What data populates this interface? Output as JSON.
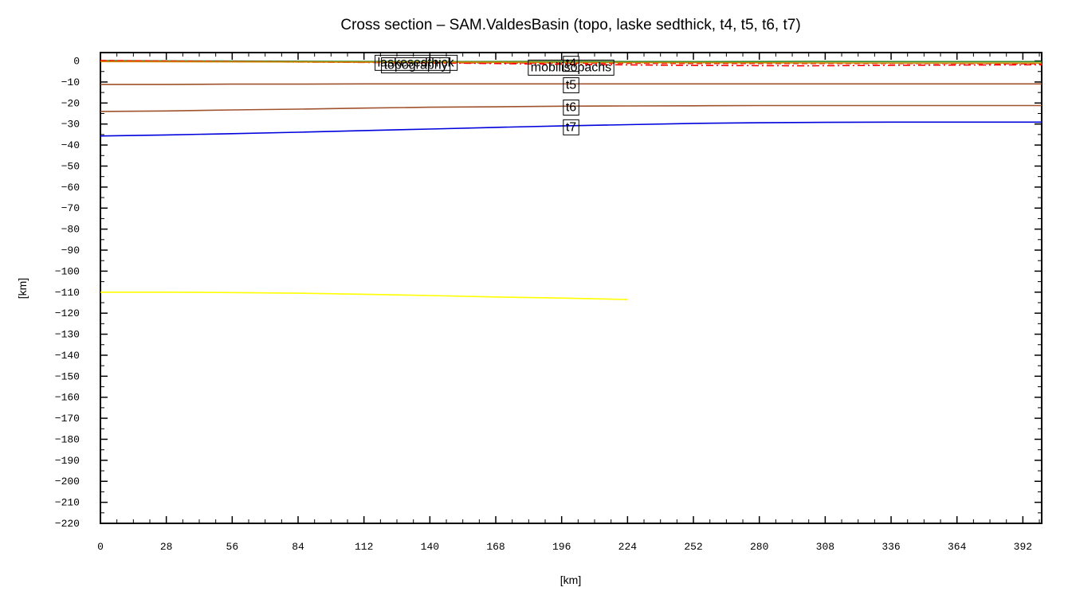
{
  "chart_data": {
    "type": "line",
    "title": "Cross section – SAM.ValdesBasin (topo, laske sedthick, t4, t5, t6, t7)",
    "xlabel": "[km]",
    "ylabel": "[km]",
    "xlim": [
      0,
      400
    ],
    "ylim": [
      -220,
      4
    ],
    "xticks": [
      0,
      28,
      56,
      84,
      112,
      140,
      168,
      196,
      224,
      252,
      280,
      308,
      336,
      364,
      392
    ],
    "yticks": [
      0,
      -10,
      -20,
      -30,
      -40,
      -50,
      -60,
      -70,
      -80,
      -90,
      -100,
      -110,
      -120,
      -130,
      -140,
      -150,
      -160,
      -170,
      -180,
      -190,
      -200,
      -210,
      -220
    ],
    "x_tick_labels": [
      "0",
      "28",
      "56",
      "84",
      "112",
      "140",
      "168",
      "196",
      "224",
      "252",
      "280",
      "308",
      "336",
      "364",
      "392"
    ],
    "y_tick_labels": [
      "0",
      "−10",
      "−20",
      "−30",
      "−40",
      "−50",
      "−60",
      "−70",
      "−80",
      "−90",
      "−100",
      "−110",
      "−120",
      "−130",
      "−140",
      "−150",
      "−160",
      "−170",
      "−180",
      "−190",
      "−200",
      "−210",
      "−220"
    ],
    "grid": false,
    "series": [
      {
        "name": "topography",
        "color": "#2e8b2e",
        "dash": "solid",
        "x": [
          0,
          50,
          100,
          150,
          200,
          250,
          300,
          350,
          400
        ],
        "y": [
          0.2,
          0.0,
          -0.2,
          -0.3,
          -0.2,
          -0.3,
          -0.2,
          -0.3,
          -0.3
        ]
      },
      {
        "name": "laskesedthick",
        "color": "#ff0000",
        "dash": "dashed",
        "x": [
          0,
          50,
          100,
          150,
          200,
          250,
          300,
          350,
          400
        ],
        "y": [
          0.2,
          -0.2,
          -0.5,
          -0.8,
          -1.0,
          -1.2,
          -1.2,
          -1.2,
          -1.3
        ]
      },
      {
        "name": "mobilisopachs",
        "color": "#ff0000",
        "dash": "dashdot",
        "x": [
          0,
          50,
          100,
          150,
          200,
          250,
          300,
          350,
          400
        ],
        "y": [
          0.0,
          -0.3,
          -0.6,
          -1.0,
          -1.6,
          -2.1,
          -2.3,
          -2.0,
          -1.8
        ]
      },
      {
        "name": "t4",
        "color": "#cc8800",
        "dash": "solid",
        "x": [
          0,
          50,
          100,
          150,
          200,
          250,
          300,
          350,
          400
        ],
        "y": [
          -0.3,
          -0.4,
          -0.5,
          -0.6,
          -0.7,
          -0.8,
          -0.9,
          -1.0,
          -1.0
        ]
      },
      {
        "name": "t5",
        "color": "#a0522d",
        "dash": "solid",
        "x": [
          0,
          28,
          56,
          84,
          112,
          140,
          168,
          196,
          224,
          252,
          280,
          308,
          336,
          364,
          400
        ],
        "y": [
          -11.2,
          -11.2,
          -11.0,
          -11.0,
          -10.9,
          -10.9,
          -10.9,
          -10.9,
          -10.9,
          -10.9,
          -10.9,
          -10.9,
          -10.9,
          -10.9,
          -10.9
        ]
      },
      {
        "name": "t6",
        "color": "#a0522d",
        "dash": "solid",
        "x": [
          0,
          28,
          56,
          84,
          112,
          140,
          168,
          196,
          224,
          252,
          280,
          308,
          336,
          364,
          400
        ],
        "y": [
          -24.0,
          -23.8,
          -23.3,
          -22.9,
          -22.4,
          -22.0,
          -21.8,
          -21.5,
          -21.4,
          -21.3,
          -21.2,
          -21.2,
          -21.2,
          -21.2,
          -21.2
        ]
      },
      {
        "name": "t7",
        "color": "#0000dd",
        "dash": "solid",
        "x": [
          0,
          28,
          56,
          84,
          112,
          140,
          168,
          196,
          224,
          252,
          280,
          308,
          336,
          364,
          400
        ],
        "y": [
          -35.7,
          -35.2,
          -34.6,
          -33.9,
          -33.1,
          -32.4,
          -31.6,
          -30.9,
          -30.3,
          -29.7,
          -29.4,
          -29.2,
          -29.1,
          -29.1,
          -29.1
        ]
      },
      {
        "name": "",
        "color": "#ffff00",
        "dash": "solid",
        "x": [
          0,
          28,
          56,
          84,
          112,
          140,
          168,
          196,
          224
        ],
        "y": [
          -110.0,
          -110.0,
          -110.2,
          -110.5,
          -111.0,
          -111.6,
          -112.3,
          -112.8,
          -113.5
        ]
      }
    ],
    "annotations": [
      {
        "text": "laskesedthick",
        "x": 134,
        "y": -0.3
      },
      {
        "text": "topography",
        "x": 134,
        "y": -1.5
      },
      {
        "text": "mobilisopachs",
        "x": 200,
        "y": -2.6
      },
      {
        "text": "t4",
        "x": 200,
        "y": -0.8
      },
      {
        "text": "t5",
        "x": 200,
        "y": -11.0
      },
      {
        "text": "t6",
        "x": 200,
        "y": -21.6
      },
      {
        "text": "t7",
        "x": 200,
        "y": -31.0
      }
    ]
  }
}
